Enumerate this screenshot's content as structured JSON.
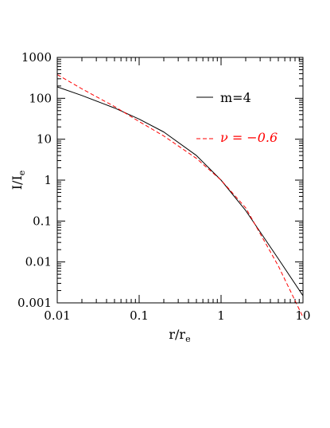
{
  "chart_data": {
    "type": "line",
    "xscale": "log",
    "yscale": "log",
    "xlim": [
      0.01,
      10
    ],
    "ylim": [
      0.001,
      1000
    ],
    "xlabel": "r/r",
    "xlabel_sub": "e",
    "ylabel": "I/I",
    "ylabel_sub": "e",
    "x_ticks": [
      0.01,
      0.1,
      1,
      10
    ],
    "x_tick_labels": [
      "0.01",
      "0.1",
      "1",
      "10"
    ],
    "y_ticks": [
      0.001,
      0.01,
      0.1,
      1,
      10,
      100,
      1000
    ],
    "y_tick_labels": [
      "0.001",
      "0.01",
      "0.1",
      "1",
      "10",
      "100",
      "1000"
    ],
    "legend_position": "top-right",
    "series": [
      {
        "name": "m=4",
        "color": "#000000",
        "style": "solid",
        "x": [
          0.01,
          0.02,
          0.05,
          0.1,
          0.2,
          0.5,
          1,
          2,
          5,
          10
        ],
        "y": [
          190,
          117,
          58,
          31,
          15,
          4.0,
          1.0,
          0.18,
          0.012,
          0.0015
        ]
      },
      {
        "name": "ν = −0.6",
        "color": "#ff0000",
        "style": "dashed",
        "x": [
          0.01,
          0.02,
          0.05,
          0.1,
          0.2,
          0.5,
          1,
          2,
          5,
          10
        ],
        "y": [
          380,
          170,
          63,
          27,
          12,
          3.4,
          1.0,
          0.21,
          0.008,
          0.00045
        ]
      }
    ]
  }
}
